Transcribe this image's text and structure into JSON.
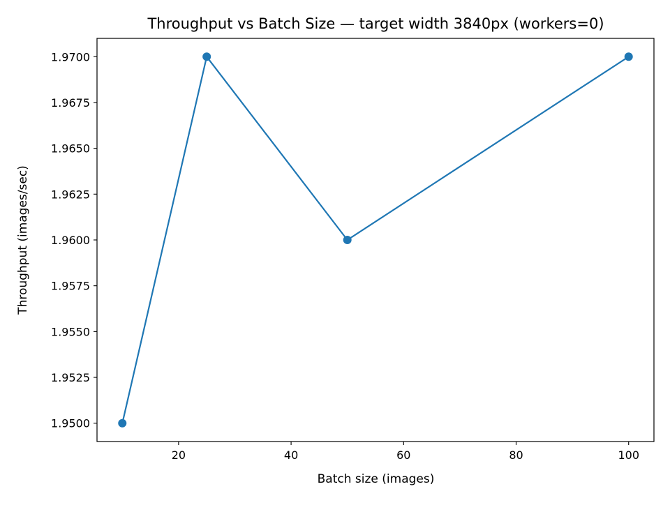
{
  "chart_data": {
    "type": "line",
    "title": "Throughput vs Batch Size — target width 3840px (workers=0)",
    "xlabel": "Batch size (images)",
    "ylabel": "Throughput (images/sec)",
    "x": [
      10,
      25,
      50,
      100
    ],
    "series": [
      {
        "values": [
          1.95,
          1.97,
          1.96,
          1.97
        ],
        "color": "#1f77b4",
        "marker": "circle"
      }
    ],
    "xlim": [
      5.5,
      104.5
    ],
    "ylim": [
      1.949,
      1.971
    ],
    "xticks": [
      20,
      40,
      60,
      80,
      100
    ],
    "xtick_labels": [
      "20",
      "40",
      "60",
      "80",
      "100"
    ],
    "yticks": [
      1.95,
      1.9525,
      1.955,
      1.9575,
      1.96,
      1.9625,
      1.965,
      1.9675,
      1.97
    ],
    "ytick_labels": [
      "1.9500",
      "1.9525",
      "1.9550",
      "1.9575",
      "1.9600",
      "1.9625",
      "1.9650",
      "1.9675",
      "1.9700"
    ],
    "grid": false,
    "legend": false
  }
}
